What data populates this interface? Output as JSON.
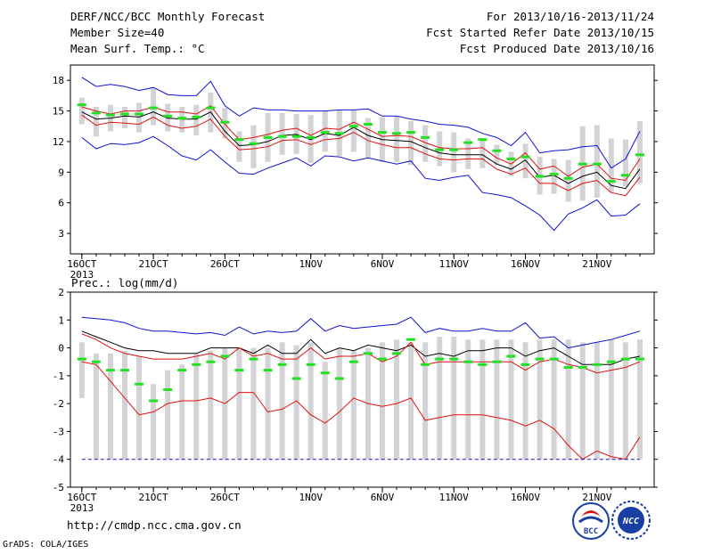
{
  "header": {
    "title": "DERF/NCC/BCC Monthly Forecast",
    "member_size": "Member Size=40",
    "variable": "Mean Surf. Temp.: °C",
    "forecast_period": "For 2013/10/16-2013/11/24",
    "start_date": "Fcst Started Refer Date 2013/10/15",
    "produced_date": "Fcst Produced Date 2013/10/16"
  },
  "footer": {
    "url": "http://cmdp.ncc.cma.gov.cn",
    "grads_credit": "GrADS: COLA/IGES",
    "logo_bcc_text": "BCC",
    "logo_ncc_text": "NCC"
  },
  "colors": {
    "box": "#d3d3d5",
    "median": "#22e022",
    "mean": "#000000",
    "red": "#e01010",
    "blue": "#1010d0"
  },
  "chart_data": [
    {
      "type": "line",
      "name": "temperature",
      "ylabel": "",
      "ylim": [
        1.0,
        19.5
      ],
      "yticks": [
        3,
        6,
        9,
        12,
        15,
        18
      ],
      "x_ticks": [
        {
          "day": 1,
          "label": "16OCT"
        },
        {
          "day": 6,
          "label": "21OCT"
        },
        {
          "day": 11,
          "label": "26OCT"
        },
        {
          "day": 17,
          "label": "1NOV"
        },
        {
          "day": 22,
          "label": "6NOV"
        },
        {
          "day": 27,
          "label": "11NOV"
        },
        {
          "day": 32,
          "label": "16NOV"
        },
        {
          "day": 37,
          "label": "21NOV"
        }
      ],
      "year_label": "2013",
      "x_range": [
        0.2,
        41.0
      ],
      "days": [
        1,
        2,
        3,
        4,
        5,
        6,
        7,
        8,
        9,
        10,
        11,
        12,
        13,
        14,
        15,
        16,
        17,
        18,
        19,
        20,
        21,
        22,
        23,
        24,
        25,
        26,
        27,
        28,
        29,
        30,
        31,
        32,
        33,
        34,
        35,
        36,
        37,
        38,
        39,
        40
      ],
      "box_low": [
        13.7,
        12.5,
        13.0,
        13.3,
        12.9,
        13.6,
        13.0,
        12.9,
        12.6,
        12.9,
        12.3,
        10.0,
        9.4,
        10.0,
        10.7,
        10.8,
        9.9,
        11.0,
        10.6,
        11.0,
        10.4,
        10.0,
        10.0,
        9.7,
        10.0,
        9.6,
        9.0,
        9.3,
        9.4,
        9.7,
        8.6,
        8.4,
        6.8,
        6.9,
        6.1,
        6.2,
        6.5,
        7.0,
        7.6,
        7.9
      ],
      "box_high": [
        16.3,
        15.4,
        15.6,
        15.4,
        15.8,
        17.2,
        15.7,
        15.4,
        15.6,
        16.8,
        15.3,
        13.0,
        13.6,
        14.8,
        14.8,
        14.7,
        14.6,
        15.0,
        15.1,
        15.1,
        14.3,
        14.4,
        14.5,
        14.0,
        13.6,
        13.0,
        12.9,
        12.3,
        12.1,
        11.7,
        11.0,
        11.8,
        10.5,
        10.3,
        10.2,
        13.5,
        13.6,
        12.3,
        12.2,
        14.0
      ],
      "median": [
        15.6,
        14.8,
        14.6,
        14.7,
        14.7,
        15.3,
        14.5,
        14.3,
        14.4,
        15.3,
        13.9,
        12.2,
        11.8,
        12.4,
        12.5,
        12.5,
        12.4,
        12.9,
        12.8,
        13.5,
        13.7,
        12.9,
        12.8,
        12.9,
        12.4,
        11.2,
        11.2,
        11.9,
        12.2,
        11.1,
        10.3,
        10.5,
        8.6,
        8.8,
        8.4,
        9.8,
        9.8,
        8.1,
        8.7,
        10.7
      ],
      "series": [
        {
          "color_key": "blue",
          "role": "upper-bound",
          "values": [
            18.3,
            17.4,
            17.6,
            17.4,
            17.0,
            17.3,
            16.6,
            16.5,
            16.5,
            17.9,
            15.5,
            14.5,
            15.3,
            15.1,
            15.1,
            15.0,
            15.0,
            15.0,
            15.1,
            15.1,
            15.2,
            14.5,
            14.5,
            14.2,
            14.0,
            13.7,
            13.6,
            13.4,
            12.8,
            12.4,
            11.6,
            12.9,
            10.9,
            11.1,
            11.2,
            11.5,
            11.6,
            9.4,
            10.3,
            13.0
          ]
        },
        {
          "color_key": "red",
          "role": "upper",
          "values": [
            15.4,
            15.0,
            14.7,
            15.0,
            15.0,
            15.4,
            14.9,
            14.9,
            14.7,
            15.5,
            13.7,
            12.2,
            12.4,
            12.7,
            13.1,
            13.3,
            12.6,
            13.3,
            13.2,
            13.9,
            13.2,
            12.5,
            12.6,
            12.5,
            11.9,
            11.4,
            11.3,
            11.3,
            11.4,
            10.4,
            9.8,
            10.9,
            9.3,
            9.6,
            8.6,
            9.5,
            9.8,
            8.4,
            8.2,
            10.3
          ]
        },
        {
          "color_key": "mean",
          "role": "mean",
          "values": [
            14.9,
            14.2,
            14.3,
            14.5,
            14.4,
            14.9,
            14.3,
            14.2,
            14.2,
            14.9,
            13.0,
            11.6,
            11.7,
            12.0,
            12.6,
            12.7,
            12.2,
            12.8,
            12.6,
            13.4,
            12.6,
            12.2,
            12.1,
            12.0,
            11.4,
            10.9,
            10.7,
            10.7,
            10.7,
            9.8,
            9.3,
            10.2,
            8.5,
            8.7,
            7.9,
            8.6,
            9.0,
            7.7,
            7.4,
            9.3
          ]
        },
        {
          "color_key": "red",
          "role": "lower",
          "values": [
            14.6,
            13.6,
            13.9,
            13.8,
            13.7,
            14.4,
            13.6,
            13.3,
            13.5,
            14.2,
            12.5,
            11.2,
            11.3,
            11.5,
            12.1,
            12.2,
            11.7,
            12.2,
            12.3,
            12.9,
            12.1,
            11.7,
            11.4,
            11.4,
            10.8,
            10.3,
            10.2,
            10.3,
            10.3,
            9.3,
            8.8,
            9.4,
            7.9,
            7.9,
            7.2,
            7.9,
            8.2,
            7.0,
            6.7,
            8.5
          ]
        },
        {
          "color_key": "blue",
          "role": "lower-bound",
          "values": [
            12.4,
            11.3,
            11.8,
            11.7,
            11.9,
            12.5,
            11.6,
            10.6,
            10.2,
            11.2,
            10.0,
            8.9,
            8.8,
            9.4,
            9.9,
            10.4,
            9.6,
            10.6,
            10.5,
            10.1,
            10.4,
            10.1,
            9.8,
            10.1,
            8.4,
            8.2,
            8.5,
            8.7,
            7.0,
            6.8,
            6.5,
            5.7,
            4.8,
            3.3,
            4.9,
            5.5,
            6.3,
            4.7,
            4.8,
            5.9
          ]
        }
      ]
    },
    {
      "type": "line",
      "name": "precipitation",
      "ylabel": "Prec.: log(mm/d)",
      "ylim": [
        -5,
        2
      ],
      "yticks": [
        -5,
        -4,
        -3,
        -2,
        -1,
        0,
        1,
        2
      ],
      "x_ticks": [
        {
          "day": 1,
          "label": "16OCT"
        },
        {
          "day": 6,
          "label": "21OCT"
        },
        {
          "day": 11,
          "label": "26OCT"
        },
        {
          "day": 17,
          "label": "1NOV"
        },
        {
          "day": 22,
          "label": "6NOV"
        },
        {
          "day": 27,
          "label": "11NOV"
        },
        {
          "day": 32,
          "label": "16NOV"
        },
        {
          "day": 37,
          "label": "21NOV"
        }
      ],
      "year_label": "2013",
      "x_range": [
        0.2,
        41.0
      ],
      "days": [
        1,
        2,
        3,
        4,
        5,
        6,
        7,
        8,
        9,
        10,
        11,
        12,
        13,
        14,
        15,
        16,
        17,
        18,
        19,
        20,
        21,
        22,
        23,
        24,
        25,
        26,
        27,
        28,
        29,
        30,
        31,
        32,
        33,
        34,
        35,
        36,
        37,
        38,
        39,
        40
      ],
      "box_low": [
        -1.8,
        -4.0,
        -4.0,
        -4.0,
        -4.0,
        -4.0,
        -4.0,
        -4.0,
        -4.0,
        -4.0,
        -4.0,
        -4.0,
        -4.0,
        -4.0,
        -4.0,
        -4.0,
        -4.0,
        -4.0,
        -4.0,
        -4.0,
        -4.0,
        -4.0,
        -4.0,
        -4.0,
        -4.0,
        -4.0,
        -4.0,
        -4.0,
        -4.0,
        -4.0,
        -4.0,
        -4.0,
        -4.0,
        -4.0,
        -4.0,
        -4.0,
        -4.0,
        -4.0,
        -4.0,
        -4.0
      ],
      "box_high": [
        0.2,
        -0.2,
        -0.2,
        -0.1,
        -0.3,
        -1.3,
        -0.8,
        -0.6,
        -0.2,
        -0.1,
        0.0,
        0.0,
        0.0,
        0.0,
        0.2,
        0.1,
        0.2,
        -0.5,
        0.0,
        -0.1,
        0.0,
        0.2,
        0.3,
        0.2,
        0.2,
        0.4,
        0.4,
        0.3,
        0.3,
        0.3,
        0.3,
        0.2,
        0.3,
        0.3,
        0.3,
        0.2,
        0.2,
        0.3,
        0.2,
        0.3
      ],
      "median": [
        -0.4,
        -0.5,
        -0.8,
        -0.8,
        -1.3,
        -1.9,
        -1.5,
        -0.8,
        -0.6,
        -0.5,
        -0.3,
        -0.8,
        -0.4,
        -0.8,
        -0.6,
        -1.1,
        -0.6,
        -0.9,
        -1.1,
        -0.5,
        -0.2,
        -0.4,
        -0.2,
        0.3,
        -0.6,
        -0.4,
        -0.4,
        -0.5,
        -0.6,
        -0.5,
        -0.3,
        -0.6,
        -0.4,
        -0.4,
        -0.7,
        -0.7,
        -0.6,
        -0.5,
        -0.4,
        -0.4
      ],
      "series": [
        {
          "color_key": "blue",
          "role": "upper-bound",
          "values": [
            1.1,
            1.05,
            1.0,
            0.9,
            0.7,
            0.6,
            0.6,
            0.55,
            0.5,
            0.55,
            0.45,
            0.75,
            0.5,
            0.6,
            0.55,
            0.6,
            1.05,
            0.6,
            0.8,
            0.7,
            0.75,
            0.8,
            0.85,
            1.1,
            0.55,
            0.7,
            0.6,
            0.6,
            0.7,
            0.6,
            0.6,
            0.9,
            0.35,
            0.4,
            0.0,
            0.1,
            0.2,
            0.3,
            0.45,
            0.6
          ]
        },
        {
          "color_key": "mean",
          "role": "mean",
          "values": [
            0.6,
            0.4,
            0.2,
            0.0,
            -0.1,
            -0.1,
            -0.2,
            -0.2,
            -0.2,
            0.0,
            0.0,
            0.0,
            -0.2,
            0.1,
            -0.2,
            -0.2,
            0.3,
            -0.2,
            0.0,
            -0.1,
            0.1,
            0.0,
            -0.1,
            0.1,
            -0.3,
            -0.2,
            -0.3,
            -0.1,
            -0.1,
            0.0,
            0.0,
            -0.3,
            -0.1,
            0.0,
            -0.3,
            -0.6,
            -0.6,
            -0.6,
            -0.4,
            -0.3
          ]
        },
        {
          "color_key": "red",
          "role": "upper",
          "values": [
            0.5,
            0.3,
            0.0,
            -0.2,
            -0.3,
            -0.4,
            -0.4,
            -0.4,
            -0.3,
            -0.2,
            -0.4,
            0.0,
            -0.3,
            -0.2,
            -0.4,
            -0.4,
            0.0,
            -0.4,
            -0.3,
            -0.3,
            -0.2,
            -0.5,
            -0.3,
            0.2,
            -0.6,
            -0.5,
            -0.5,
            -0.5,
            -0.5,
            -0.5,
            -0.5,
            -0.8,
            -0.5,
            -0.4,
            -0.6,
            -0.7,
            -0.9,
            -0.8,
            -0.7,
            -0.5
          ]
        },
        {
          "color_key": "red",
          "role": "lower",
          "values": [
            -0.5,
            -0.6,
            -1.2,
            -1.8,
            -2.4,
            -2.3,
            -2.0,
            -1.9,
            -1.9,
            -1.8,
            -2.0,
            -1.6,
            -1.6,
            -2.3,
            -2.2,
            -1.9,
            -2.4,
            -2.7,
            -2.3,
            -1.8,
            -2.0,
            -2.1,
            -2.0,
            -1.8,
            -2.6,
            -2.5,
            -2.4,
            -2.4,
            -2.4,
            -2.5,
            -2.6,
            -2.8,
            -2.6,
            -2.9,
            -3.5,
            -4.0,
            -3.7,
            -3.9,
            -4.0,
            -3.2
          ]
        },
        {
          "color_key": "blue",
          "role": "lower-bound",
          "values": [
            -4.0,
            -4.0,
            -4.0,
            -4.0,
            -4.0,
            -4.0,
            -4.0,
            -4.0,
            -4.0,
            -4.0,
            -4.0,
            -4.0,
            -4.0,
            -4.0,
            -4.0,
            -4.0,
            -4.0,
            -4.0,
            -4.0,
            -4.0,
            -4.0,
            -4.0,
            -4.0,
            -4.0,
            -4.0,
            -4.0,
            -4.0,
            -4.0,
            -4.0,
            -4.0,
            -4.0,
            -4.0,
            -4.0,
            -4.0,
            -4.0,
            -4.0,
            -4.0,
            -4.0,
            -4.0,
            -4.0
          ]
        }
      ]
    }
  ]
}
